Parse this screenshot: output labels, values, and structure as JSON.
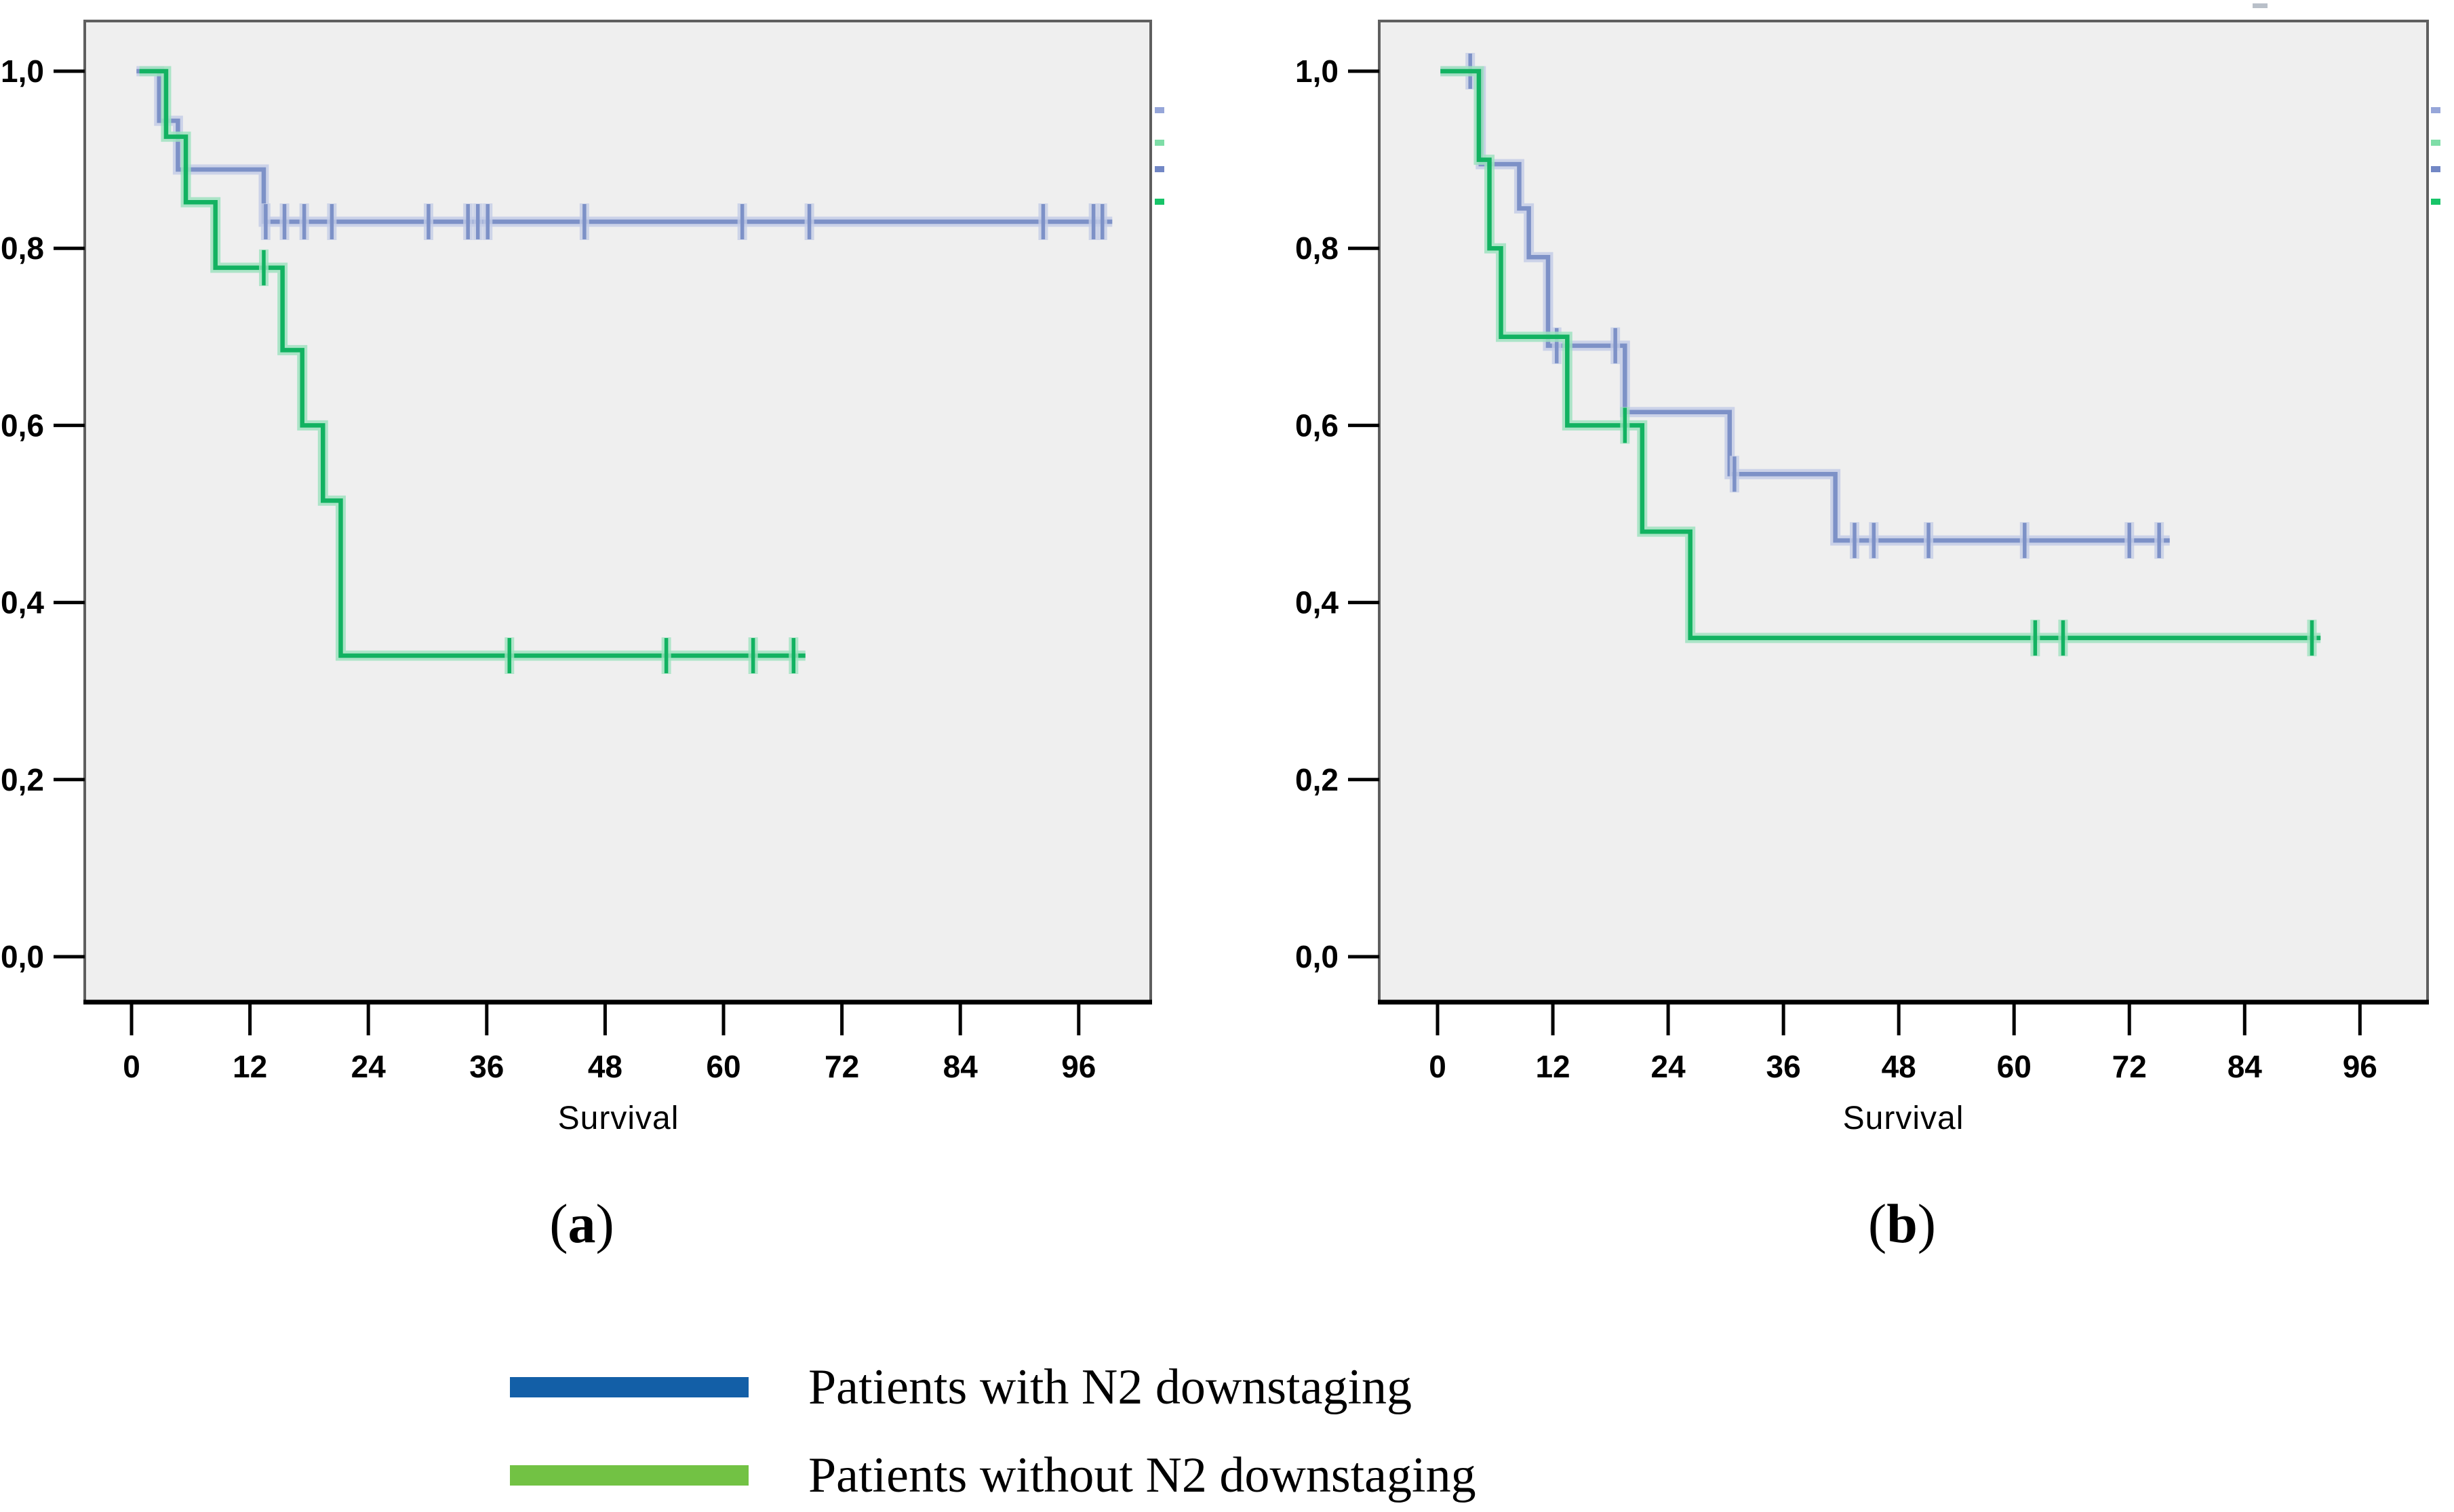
{
  "panels": [
    {
      "key": "a",
      "caption": {
        "open": "(",
        "letter": "a",
        "close": ")"
      },
      "xlabel": "Survival",
      "x_tick_labels": [
        "0",
        "12",
        "24",
        "36",
        "48",
        "60",
        "72",
        "84",
        "96"
      ],
      "y_tick_labels": [
        "1,0",
        "0,8",
        "0,6",
        "0,4",
        "0,2",
        "0,0"
      ]
    },
    {
      "key": "b",
      "caption": {
        "open": "(",
        "letter": "b",
        "close": ")"
      },
      "xlabel": "Survival",
      "x_tick_labels": [
        "0",
        "12",
        "24",
        "36",
        "48",
        "60",
        "72",
        "84",
        "96"
      ],
      "y_tick_labels": [
        "1,0",
        "0,8",
        "0,6",
        "0,4",
        "0,2",
        "0,0"
      ]
    }
  ],
  "legend": {
    "items": [
      {
        "label": "Patients with N2 downstaging",
        "color": "#135fa7"
      },
      {
        "label": "Patients without N2 downstaging",
        "color": "#72c244"
      }
    ]
  },
  "colors": {
    "plot_background": "#efefef",
    "plot_border": "#5f5f5f",
    "axis": "#000000",
    "curve_blue": "#7d91c7",
    "curve_blue_halo": "#c4cde6",
    "curve_green": "#12b261",
    "curve_green_halo": "#9fe2bf",
    "side_dash_light_blue": "#96a6d9",
    "side_dash_light_green": "#7edda7",
    "side_dash_blue": "#7287c5",
    "side_dash_green": "#17c468",
    "top_artifact": "#b9c0c9"
  },
  "chart_data": [
    {
      "type": "line",
      "panel": "a",
      "title": "",
      "xlabel": "Survival",
      "ylabel": "",
      "xlim": [
        0,
        103
      ],
      "ylim": [
        0.0,
        1.0
      ],
      "x_ticks": [
        0,
        12,
        24,
        36,
        48,
        60,
        72,
        84,
        96
      ],
      "y_ticks": [
        1.0,
        0.8,
        0.6,
        0.4,
        0.2,
        0.0
      ],
      "grid": false,
      "legend_position": "bottom-outside",
      "series": [
        {
          "name": "Patients with N2 downstaging",
          "color_key": "curve_blue",
          "steps": [
            [
              0.5,
              1.0
            ],
            [
              2.8,
              0.944
            ],
            [
              4.7,
              0.889
            ],
            [
              13.4,
              0.83
            ]
          ],
          "end_x": 99.4,
          "censors": [
            [
              13.6,
              0.83
            ],
            [
              15.5,
              0.83
            ],
            [
              17.5,
              0.83
            ],
            [
              20.3,
              0.83
            ],
            [
              30.1,
              0.83
            ],
            [
              34.1,
              0.83
            ],
            [
              35.1,
              0.83
            ],
            [
              36.1,
              0.83
            ],
            [
              45.9,
              0.83
            ],
            [
              61.9,
              0.83
            ],
            [
              68.7,
              0.83
            ],
            [
              92.4,
              0.83
            ],
            [
              97.5,
              0.83
            ],
            [
              98.4,
              0.83
            ]
          ]
        },
        {
          "name": "Patients without N2 downstaging",
          "color_key": "curve_green",
          "steps": [
            [
              0.8,
              1.0
            ],
            [
              3.5,
              0.926
            ],
            [
              5.5,
              0.852
            ],
            [
              8.5,
              0.778
            ],
            [
              15.3,
              0.685
            ],
            [
              17.3,
              0.6
            ],
            [
              19.4,
              0.515
            ],
            [
              21.2,
              0.34
            ]
          ],
          "end_x": 68.3,
          "censors": [
            [
              13.4,
              0.778
            ],
            [
              38.3,
              0.34
            ],
            [
              54.2,
              0.34
            ],
            [
              63.0,
              0.34
            ],
            [
              67.1,
              0.34
            ]
          ]
        }
      ]
    },
    {
      "type": "line",
      "panel": "b",
      "title": "",
      "xlabel": "Survival",
      "ylabel": "",
      "xlim": [
        0,
        103
      ],
      "ylim": [
        0.0,
        1.0
      ],
      "x_ticks": [
        0,
        12,
        24,
        36,
        48,
        60,
        72,
        84,
        96
      ],
      "y_ticks": [
        1.0,
        0.8,
        0.6,
        0.4,
        0.2,
        0.0
      ],
      "grid": false,
      "legend_position": "bottom-outside",
      "series": [
        {
          "name": "Patients with N2 downstaging",
          "color_key": "curve_blue",
          "steps": [
            [
              0.3,
              1.0
            ],
            [
              4.5,
              0.895
            ],
            [
              8.5,
              0.845
            ],
            [
              9.5,
              0.79
            ],
            [
              11.5,
              0.69
            ],
            [
              19.5,
              0.615
            ],
            [
              30.4,
              0.545
            ],
            [
              41.4,
              0.47
            ]
          ],
          "end_x": 76.2,
          "censors": [
            [
              3.4,
              1.0
            ],
            [
              12.4,
              0.69
            ],
            [
              18.5,
              0.69
            ],
            [
              30.9,
              0.545
            ],
            [
              43.4,
              0.47
            ],
            [
              45.4,
              0.47
            ],
            [
              51.1,
              0.47
            ],
            [
              61.1,
              0.47
            ],
            [
              72.0,
              0.47
            ],
            [
              75.1,
              0.47
            ]
          ]
        },
        {
          "name": "Patients without N2 downstaging",
          "color_key": "curve_green",
          "steps": [
            [
              0.3,
              1.0
            ],
            [
              4.3,
              0.9
            ],
            [
              5.4,
              0.8
            ],
            [
              6.6,
              0.7
            ],
            [
              13.5,
              0.6
            ],
            [
              21.3,
              0.48
            ],
            [
              26.3,
              0.36
            ]
          ],
          "end_x": 91.9,
          "censors": [
            [
              19.5,
              0.6
            ],
            [
              62.2,
              0.36
            ],
            [
              65.1,
              0.36
            ],
            [
              91.0,
              0.36
            ]
          ]
        }
      ]
    }
  ]
}
